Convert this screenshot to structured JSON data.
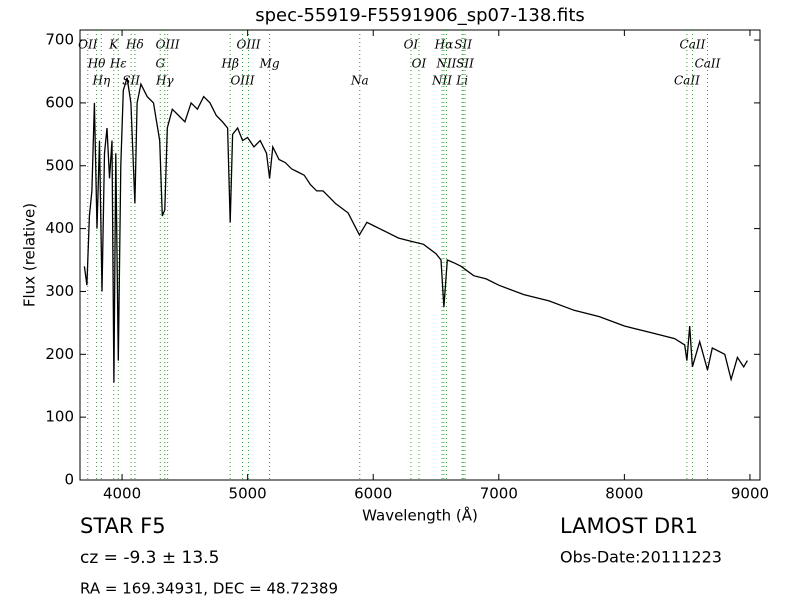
{
  "chart_data": {
    "type": "line",
    "title": "spec-55919-F5591906_sp07-138.fits",
    "x_label": "Wavelength (Å)",
    "y_label": "Flux (relative)",
    "xlim": [
      3665,
      9080
    ],
    "ylim": [
      0,
      716
    ],
    "xticks": [
      4000,
      5000,
      6000,
      7000,
      8000,
      9000
    ],
    "yticks": [
      0,
      100,
      200,
      300,
      400,
      500,
      600,
      700
    ],
    "color": "#000000",
    "line_color": "#2ca02c",
    "x": [
      3700,
      3720,
      3740,
      3760,
      3780,
      3800,
      3820,
      3840,
      3860,
      3880,
      3900,
      3920,
      3935,
      3950,
      3970,
      3990,
      4010,
      4040,
      4070,
      4102,
      4120,
      4150,
      4200,
      4250,
      4300,
      4320,
      4340,
      4360,
      4400,
      4450,
      4500,
      4550,
      4600,
      4650,
      4700,
      4750,
      4800,
      4840,
      4861,
      4880,
      4920,
      4960,
      5000,
      5050,
      5100,
      5150,
      5175,
      5200,
      5250,
      5300,
      5350,
      5400,
      5450,
      5500,
      5550,
      5600,
      5650,
      5700,
      5800,
      5890,
      5950,
      6000,
      6100,
      6200,
      6300,
      6400,
      6500,
      6540,
      6563,
      6590,
      6650,
      6700,
      6800,
      6900,
      7000,
      7200,
      7400,
      7600,
      7800,
      8000,
      8200,
      8400,
      8480,
      8498,
      8520,
      8542,
      8600,
      8662,
      8700,
      8800,
      8850,
      8900,
      8950,
      8980
    ],
    "values": [
      340,
      310,
      420,
      460,
      600,
      400,
      540,
      300,
      520,
      560,
      480,
      540,
      155,
      520,
      190,
      500,
      620,
      640,
      600,
      440,
      600,
      630,
      610,
      600,
      540,
      420,
      430,
      560,
      590,
      580,
      570,
      600,
      590,
      610,
      600,
      580,
      570,
      560,
      410,
      550,
      560,
      540,
      545,
      530,
      540,
      520,
      480,
      530,
      510,
      505,
      495,
      490,
      485,
      470,
      460,
      460,
      450,
      440,
      425,
      390,
      410,
      405,
      395,
      385,
      380,
      375,
      360,
      350,
      275,
      350,
      345,
      340,
      325,
      320,
      310,
      295,
      285,
      270,
      260,
      245,
      235,
      225,
      215,
      190,
      245,
      180,
      220,
      175,
      210,
      200,
      160,
      195,
      180,
      190
    ],
    "lines": [
      {
        "label": "OII",
        "x": 3727
      },
      {
        "label": "Hθ",
        "x": 3797
      },
      {
        "label": "Hη",
        "x": 3835
      },
      {
        "label": "K",
        "x": 3934
      },
      {
        "label": "Hε",
        "x": 3970
      },
      {
        "label": "SII",
        "x": 4072
      },
      {
        "label": "Hδ",
        "x": 4102
      },
      {
        "label": "G",
        "x": 4304
      },
      {
        "label": "Hγ",
        "x": 4340
      },
      {
        "label": "OIII",
        "x": 4363
      },
      {
        "label": "Hβ",
        "x": 4861
      },
      {
        "label": "OIII",
        "x": 4959
      },
      {
        "label": "OIII",
        "x": 5007
      },
      {
        "label": "Mg",
        "x": 5175
      },
      {
        "label": "Na",
        "x": 5893
      },
      {
        "label": "OI",
        "x": 6300
      },
      {
        "label": "OI",
        "x": 6364
      },
      {
        "label": "NII",
        "x": 6548
      },
      {
        "label": "Hα",
        "x": 6563
      },
      {
        "label": "NII",
        "x": 6583
      },
      {
        "label": "Li",
        "x": 6708
      },
      {
        "label": "SII",
        "x": 6716
      },
      {
        "label": "SII",
        "x": 6731
      },
      {
        "label": "CaII",
        "x": 8498
      },
      {
        "label": "CaII",
        "x": 8542
      },
      {
        "label": "CaII",
        "x": 8662
      }
    ]
  },
  "info": {
    "object": "STAR   F5",
    "cz": "cz = -9.3 ± 13.5",
    "coords": "RA = 169.34931, DEC = 48.72389",
    "survey": "LAMOST DR1",
    "obs_date": "Obs-Date:20111223"
  }
}
